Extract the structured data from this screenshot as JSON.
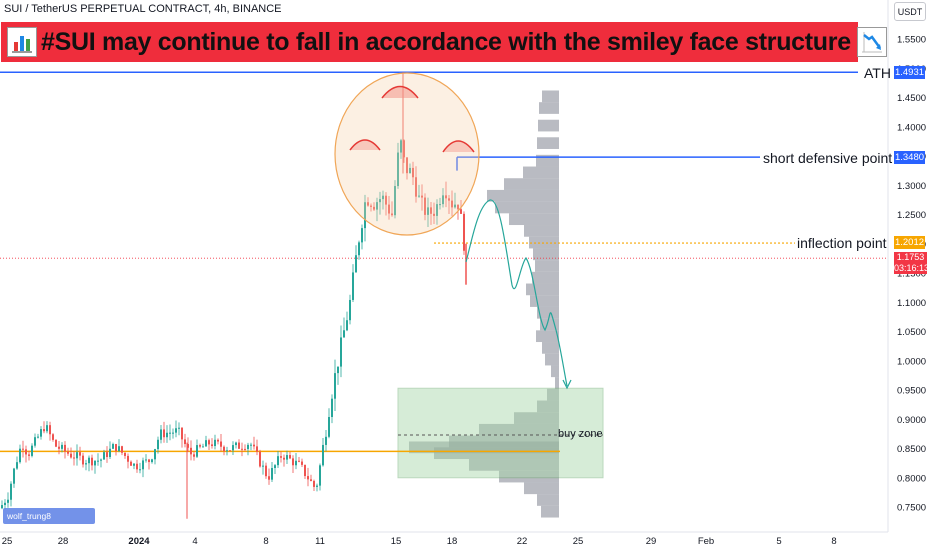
{
  "header": {
    "symbol_line": "SUI / TetherUS PERPETUAL CONTRACT, 4h, BINANCE",
    "banner_title": "#SUI may continue to fall in accordance with the smiley face structure",
    "currency": "USDT"
  },
  "annotations": {
    "ath_label": "ATH",
    "short_label": "short defensive point",
    "inflection_label": "inflection point",
    "buy_zone_label": "buy zone"
  },
  "price_tags": {
    "ath": "1.4931",
    "short": "1.3480",
    "inflection": "1.2012",
    "current": "1.1753",
    "countdown": "03:16:13"
  },
  "watermark": "wolf_trung8",
  "colors": {
    "up": "#26a69a",
    "down": "#ef5350",
    "banner": "#ef2d3c",
    "ath_line": "#2962ff",
    "inflection_line": "#f7a600",
    "support_line": "#f7a600",
    "buy_zone": "#a5d6a7",
    "profile": "#8a8d99",
    "circle_stroke": "#f0a657",
    "path": "#26a69a"
  },
  "chart_data": {
    "type": "candlestick",
    "timeframe": "4h",
    "y_axis": {
      "ticks": [
        "1.5500",
        "1.5000",
        "1.4500",
        "1.4000",
        "1.3500",
        "1.3000",
        "1.2500",
        "1.2000",
        "1.1500",
        "1.1000",
        "1.0500",
        "1.0000",
        "0.9500",
        "0.9000",
        "0.8500",
        "0.8000",
        "0.7500"
      ],
      "range": [
        0.73,
        1.565
      ]
    },
    "x_axis": {
      "ticks": [
        "25",
        "28",
        "2024",
        "4",
        "8",
        "11",
        "15",
        "18",
        "22",
        "25",
        "29",
        "Feb",
        "5",
        "8"
      ]
    },
    "levels": [
      {
        "name": "ATH",
        "price": 1.4931
      },
      {
        "name": "short defensive point",
        "price": 1.348
      },
      {
        "name": "inflection point",
        "price": 1.2012
      },
      {
        "name": "support",
        "price": 0.845
      }
    ],
    "buy_zone": {
      "low": 0.8,
      "high": 0.953
    }
  }
}
